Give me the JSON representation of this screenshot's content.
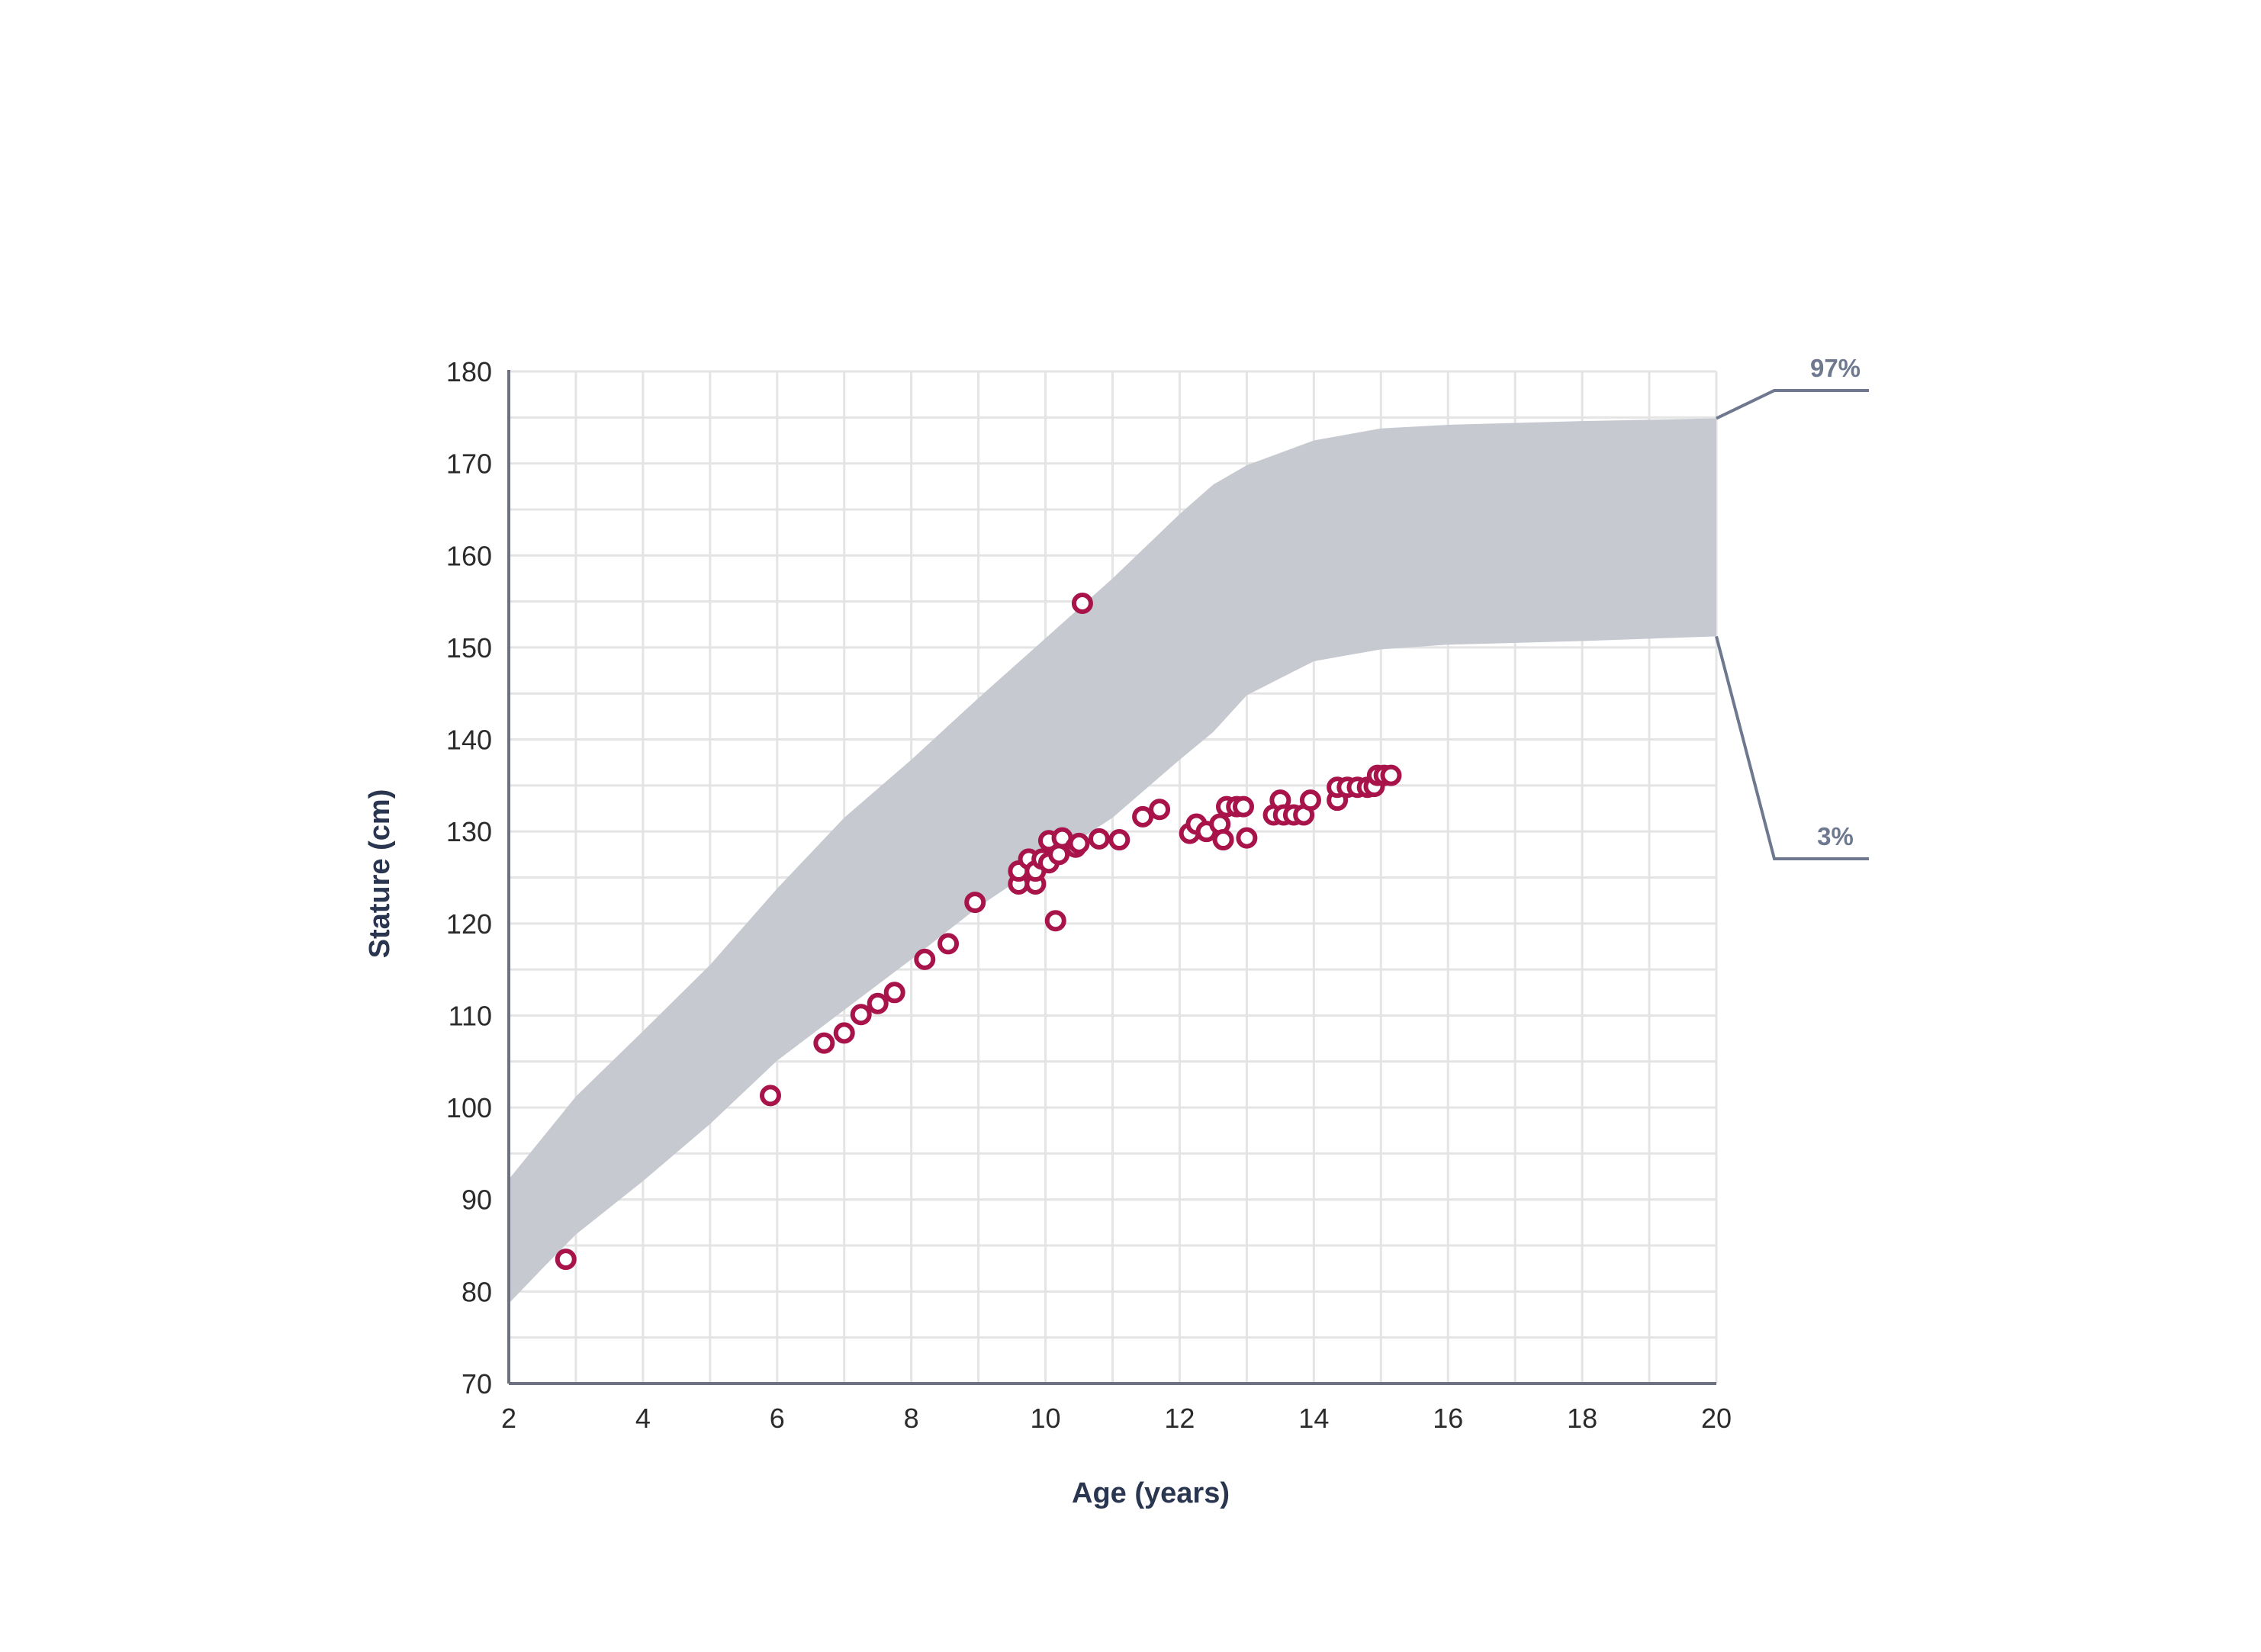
{
  "chart_data": {
    "type": "scatter",
    "title": "",
    "xlabel": "Age (years)",
    "ylabel": "Stature (cm)",
    "xlim": [
      2,
      20
    ],
    "ylim": [
      70,
      180
    ],
    "xticks": [
      2,
      4,
      6,
      8,
      10,
      12,
      14,
      16,
      18,
      20
    ],
    "yticks": [
      70,
      80,
      90,
      100,
      110,
      120,
      130,
      140,
      150,
      160,
      170,
      180
    ],
    "x_minor_step": 1,
    "y_minor_step": 5,
    "grid": true,
    "colors": {
      "band": "#c6c9d0",
      "points": "#a8134a",
      "leader": "#6e788e",
      "axis": "#6e7280",
      "grid": "#e4e4e4"
    },
    "band": {
      "upper_label": "97%",
      "lower_label": "3%",
      "upper": [
        [
          2,
          92.2
        ],
        [
          3,
          101.2
        ],
        [
          4,
          108.3
        ],
        [
          5,
          115.5
        ],
        [
          6,
          123.8
        ],
        [
          7,
          131.5
        ],
        [
          8,
          137.8
        ],
        [
          9,
          144.5
        ],
        [
          10,
          151
        ],
        [
          11,
          157.5
        ],
        [
          12,
          164.5
        ],
        [
          12.5,
          167.7
        ],
        [
          13,
          169.8
        ],
        [
          14,
          172.5
        ],
        [
          15,
          173.8
        ],
        [
          16,
          174.2
        ],
        [
          18,
          174.6
        ],
        [
          20,
          174.9
        ]
      ],
      "lower": [
        [
          2,
          78.7
        ],
        [
          2.5,
          82.5
        ],
        [
          3,
          86.2
        ],
        [
          4,
          92
        ],
        [
          5,
          98.2
        ],
        [
          6,
          105.1
        ],
        [
          7,
          110.6
        ],
        [
          8,
          116.1
        ],
        [
          9,
          121.8
        ],
        [
          10,
          126.7
        ],
        [
          11,
          131.5
        ],
        [
          12,
          137.8
        ],
        [
          12.5,
          140.8
        ],
        [
          13,
          144.8
        ],
        [
          14,
          148.5
        ],
        [
          15,
          149.8
        ],
        [
          16,
          150.3
        ],
        [
          18,
          150.7
        ],
        [
          20,
          151.2
        ]
      ]
    },
    "series": [
      {
        "points": [
          [
            2.85,
            83.5
          ],
          [
            5.9,
            101.3
          ],
          [
            6.7,
            107
          ],
          [
            7.0,
            108.1
          ],
          [
            7.25,
            110.1
          ],
          [
            7.5,
            111.3
          ],
          [
            7.75,
            112.5
          ],
          [
            8.2,
            116.1
          ],
          [
            8.55,
            117.8
          ],
          [
            8.95,
            122.3
          ],
          [
            9.6,
            124.3
          ],
          [
            9.6,
            125.7
          ],
          [
            9.75,
            127
          ],
          [
            9.85,
            124.3
          ],
          [
            9.85,
            125.7
          ],
          [
            9.95,
            127
          ],
          [
            10.05,
            129
          ],
          [
            10.05,
            126.6
          ],
          [
            10.15,
            120.3
          ],
          [
            10.2,
            127.5
          ],
          [
            10.25,
            129.3
          ],
          [
            10.45,
            128.3
          ],
          [
            10.5,
            128.7
          ],
          [
            10.55,
            154.8
          ],
          [
            10.8,
            129.2
          ],
          [
            11.1,
            129.1
          ],
          [
            11.45,
            131.6
          ],
          [
            11.7,
            132.4
          ],
          [
            12.15,
            129.8
          ],
          [
            12.25,
            130.8
          ],
          [
            12.4,
            130
          ],
          [
            12.6,
            130.8
          ],
          [
            12.65,
            129.1
          ],
          [
            12.7,
            132.7
          ],
          [
            12.85,
            132.7
          ],
          [
            12.95,
            132.7
          ],
          [
            13.0,
            129.3
          ],
          [
            13.4,
            131.8
          ],
          [
            13.5,
            133.4
          ],
          [
            13.55,
            131.8
          ],
          [
            13.7,
            131.8
          ],
          [
            13.85,
            131.8
          ],
          [
            13.95,
            133.4
          ],
          [
            14.35,
            133.4
          ],
          [
            14.35,
            134.8
          ],
          [
            14.5,
            134.8
          ],
          [
            14.65,
            134.8
          ],
          [
            14.8,
            134.8
          ],
          [
            14.9,
            134.9
          ],
          [
            14.95,
            136.1
          ],
          [
            15.05,
            136.1
          ],
          [
            15.15,
            136.1
          ]
        ]
      }
    ]
  }
}
